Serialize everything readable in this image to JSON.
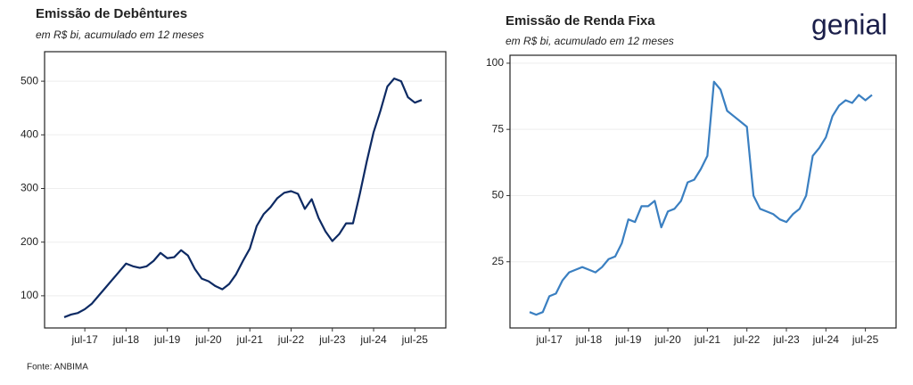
{
  "chart_data": [
    {
      "type": "line",
      "title": "Emissão de Debêntures",
      "subtitle": "em R$ bi, acumulado em 12 meses",
      "categories": [
        null,
        null,
        null,
        "jul-17",
        null,
        null,
        null,
        null,
        null,
        "jul-18",
        null,
        null,
        null,
        null,
        null,
        "jul-19",
        null,
        null,
        null,
        null,
        null,
        "jul-20",
        null,
        null,
        null,
        null,
        null,
        "jul-21",
        null,
        null,
        null,
        null,
        null,
        "jul-22",
        null,
        null,
        null,
        null,
        null,
        "jul-23",
        null,
        null,
        null,
        null,
        null,
        "jul-24",
        null,
        null,
        null,
        null,
        null,
        "jul-25",
        null
      ],
      "series": [
        {
          "name": "Debêntures",
          "color": "#0d2a63",
          "values": [
            60,
            65,
            68,
            75,
            85,
            100,
            115,
            130,
            145,
            160,
            155,
            152,
            155,
            165,
            180,
            170,
            172,
            185,
            175,
            150,
            132,
            127,
            118,
            112,
            122,
            140,
            165,
            188,
            230,
            252,
            265,
            282,
            292,
            295,
            290,
            262,
            280,
            245,
            220,
            202,
            215,
            235,
            235,
            290,
            350,
            405,
            445,
            490,
            505,
            500,
            470,
            460,
            465
          ]
        }
      ],
      "ylim": [
        40,
        555
      ],
      "yticks": [
        100,
        200,
        300,
        400,
        500
      ],
      "grid": true
    },
    {
      "type": "line",
      "title": "Emissão de Renda Fixa",
      "subtitle": "em R$ bi, acumulado em 12 meses",
      "categories": [
        null,
        null,
        null,
        "jul-17",
        null,
        null,
        null,
        null,
        null,
        "jul-18",
        null,
        null,
        null,
        null,
        null,
        "jul-19",
        null,
        null,
        null,
        null,
        null,
        "jul-20",
        null,
        null,
        null,
        null,
        null,
        "jul-21",
        null,
        null,
        null,
        null,
        null,
        "jul-22",
        null,
        null,
        null,
        null,
        null,
        "jul-23",
        null,
        null,
        null,
        null,
        null,
        "jul-24",
        null,
        null,
        null,
        null,
        null,
        "jul-25",
        null
      ],
      "series": [
        {
          "name": "Renda Fixa",
          "color": "#3a7fc1",
          "values": [
            6,
            5,
            6,
            12,
            13,
            18,
            21,
            22,
            23,
            22,
            21,
            23,
            26,
            27,
            32,
            41,
            40,
            46,
            46,
            48,
            38,
            44,
            45,
            48,
            55,
            56,
            60,
            65,
            93,
            90,
            82,
            80,
            78,
            76,
            50,
            45,
            44,
            43,
            41,
            40,
            43,
            45,
            50,
            65,
            68,
            72,
            80,
            84,
            86,
            85,
            88,
            86,
            88
          ]
        }
      ],
      "ylim": [
        0,
        103
      ],
      "yticks": [
        25,
        50,
        75,
        100
      ],
      "grid": true
    }
  ],
  "logo": "genial",
  "source": "Fonte: ANBIMA"
}
